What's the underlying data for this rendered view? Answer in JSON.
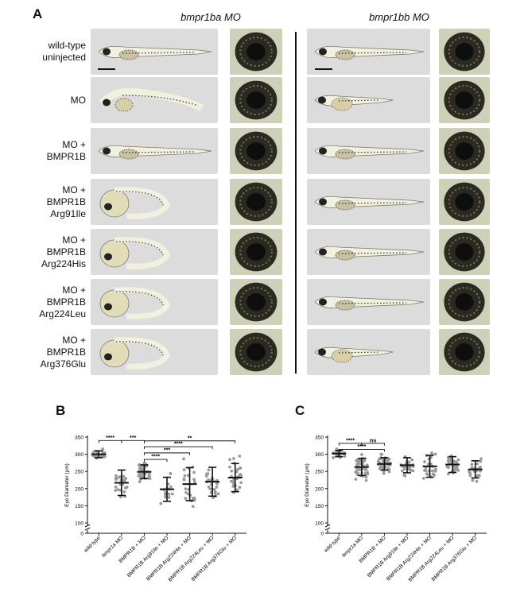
{
  "panels": {
    "a": "A",
    "b": "B",
    "c": "C"
  },
  "columns": [
    {
      "title": "bmpr1ba MO"
    },
    {
      "title": "bmpr1bb MO"
    }
  ],
  "rows": [
    {
      "lines": [
        "wild-type",
        "uninjected"
      ]
    },
    {
      "lines": [
        "MO"
      ]
    },
    {
      "lines": [
        "MO +",
        "BMPR1B"
      ]
    },
    {
      "lines": [
        "MO +",
        "BMPR1B",
        "Arg91Ile"
      ]
    },
    {
      "lines": [
        "MO +",
        "BMPR1B",
        "Arg224His"
      ]
    },
    {
      "lines": [
        "MO +",
        "BMPR1B",
        "Arg224Leu"
      ]
    },
    {
      "lines": [
        "MO +",
        "BMPR1B",
        "Arg376Glu"
      ]
    }
  ],
  "fish_poses": {
    "left": [
      "straight",
      "curved",
      "straight",
      "curled",
      "curled",
      "curled",
      "curled"
    ],
    "right": [
      "straight",
      "short",
      "straight",
      "straight",
      "straight",
      "straight",
      "short"
    ]
  },
  "chart_data": [
    {
      "type": "scatter",
      "panel": "B",
      "ylabel": "Eye Diameter (µm)",
      "yticks": [
        0,
        100,
        150,
        200,
        250,
        300,
        350
      ],
      "ylim": [
        100,
        350
      ],
      "axis_break": true,
      "categories": [
        "wild-type",
        "bmpr1a MO",
        "BMPR1B + MO",
        "BMPR1B Arg91Ile + MO",
        "BMPR1B Arg224His + MO",
        "BMPR1B Arg224Leu + MO",
        "BMPR1B Arg376Glu + MO"
      ],
      "italic_prefix": [
        "",
        "bmpr1a",
        "",
        "",
        "",
        "",
        ""
      ],
      "groups": [
        {
          "mean": 300,
          "sd": 10,
          "n": 28
        },
        {
          "mean": 217,
          "sd": 37,
          "n": 25
        },
        {
          "mean": 249,
          "sd": 20,
          "n": 45
        },
        {
          "mean": 198,
          "sd": 35,
          "n": 15
        },
        {
          "mean": 213,
          "sd": 48,
          "n": 22
        },
        {
          "mean": 220,
          "sd": 42,
          "n": 25
        },
        {
          "mean": 232,
          "sd": 41,
          "n": 30
        }
      ],
      "comparisons": [
        {
          "from": 0,
          "to": 1,
          "label": "****",
          "y": 340
        },
        {
          "from": 1,
          "to": 2,
          "label": "***",
          "y": 340
        },
        {
          "from": 2,
          "to": 6,
          "label": "**",
          "y": 339
        },
        {
          "from": 2,
          "to": 5,
          "label": "****",
          "y": 322
        },
        {
          "from": 2,
          "to": 4,
          "label": "***",
          "y": 304
        },
        {
          "from": 2,
          "to": 3,
          "label": "****",
          "y": 285
        }
      ]
    },
    {
      "type": "scatter",
      "panel": "C",
      "ylabel": "Eye Diameter (µm)",
      "yticks": [
        0,
        100,
        150,
        200,
        250,
        300,
        350
      ],
      "ylim": [
        100,
        350
      ],
      "axis_break": true,
      "categories": [
        "wild-type",
        "bmpr1a MO",
        "BMPR1B + MO",
        "BMPR1B Arg91Ile + MO",
        "BMPR1B Arg224His + MO",
        "BMPR1B Arg224Leu + MO",
        "BMPR1B Arg376Glu + MO"
      ],
      "italic_prefix": [
        "",
        "bmpr1a",
        "",
        "",
        "",
        "",
        ""
      ],
      "groups": [
        {
          "mean": 302,
          "sd": 9,
          "n": 25
        },
        {
          "mean": 263,
          "sd": 25,
          "n": 45
        },
        {
          "mean": 272,
          "sd": 18,
          "n": 45
        },
        {
          "mean": 268,
          "sd": 22,
          "n": 28
        },
        {
          "mean": 265,
          "sd": 32,
          "n": 25
        },
        {
          "mean": 270,
          "sd": 23,
          "n": 30
        },
        {
          "mean": 256,
          "sd": 25,
          "n": 25
        }
      ],
      "comparisons": [
        {
          "from": 0,
          "to": 1,
          "label": "****",
          "y": 332
        },
        {
          "from": 1,
          "to": 2,
          "label": "ns",
          "y": 332
        },
        {
          "from": 0,
          "to": 2,
          "label": "****",
          "y": 314
        }
      ]
    }
  ]
}
